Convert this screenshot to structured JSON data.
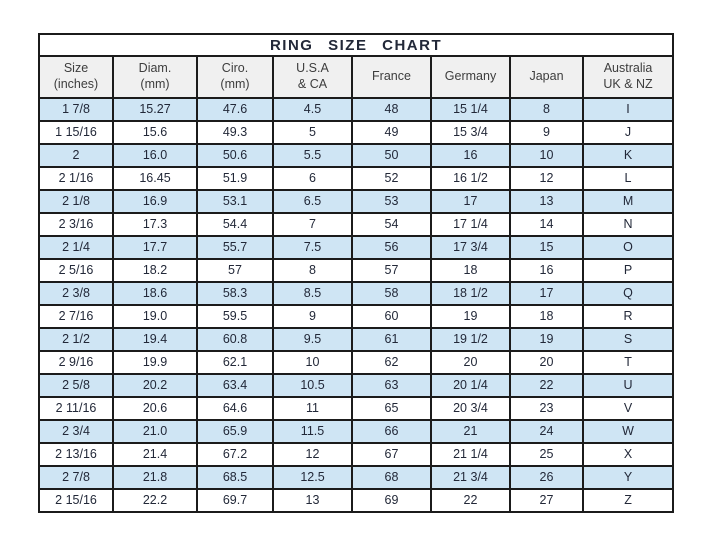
{
  "page_title": "RING SIZE CHART",
  "colors": {
    "row_alt_blue": "#cfe5f4",
    "row_base": "#ffffff",
    "header_bg": "#f0f0f0",
    "border": "#1b1b1b",
    "title_text": "#111111",
    "cell_text": "#222838"
  },
  "chart_data": {
    "type": "table",
    "title": "RING SIZE CHART",
    "layout_hints": {
      "title_row_spans_all_columns": true,
      "alternating_row_shading": "odd rows light blue, even rows white",
      "grid": "all cells bordered black"
    },
    "columns": [
      {
        "label": "Size",
        "sublabel": "(inches)"
      },
      {
        "label": "Diam.",
        "sublabel": "(mm)"
      },
      {
        "label": "Ciro.",
        "sublabel": "(mm)"
      },
      {
        "label": "U.S.A",
        "sublabel": "& CA"
      },
      {
        "label": "France",
        "sublabel": ""
      },
      {
        "label": "Germany",
        "sublabel": ""
      },
      {
        "label": "Japan",
        "sublabel": ""
      },
      {
        "label": "Australia",
        "sublabel": "UK & NZ"
      }
    ],
    "rows": [
      [
        "1 7/8",
        "15.27",
        "47.6",
        "4.5",
        "48",
        "15 1/4",
        "8",
        "I"
      ],
      [
        "1 15/16",
        "15.6",
        "49.3",
        "5",
        "49",
        "15 3/4",
        "9",
        "J"
      ],
      [
        "2",
        "16.0",
        "50.6",
        "5.5",
        "50",
        "16",
        "10",
        "K"
      ],
      [
        "2 1/16",
        "16.45",
        "51.9",
        "6",
        "52",
        "16 1/2",
        "12",
        "L"
      ],
      [
        "2 1/8",
        "16.9",
        "53.1",
        "6.5",
        "53",
        "17",
        "13",
        "M"
      ],
      [
        "2 3/16",
        "17.3",
        "54.4",
        "7",
        "54",
        "17 1/4",
        "14",
        "N"
      ],
      [
        "2 1/4",
        "17.7",
        "55.7",
        "7.5",
        "56",
        "17 3/4",
        "15",
        "O"
      ],
      [
        "2 5/16",
        "18.2",
        "57",
        "8",
        "57",
        "18",
        "16",
        "P"
      ],
      [
        "2 3/8",
        "18.6",
        "58.3",
        "8.5",
        "58",
        "18 1/2",
        "17",
        "Q"
      ],
      [
        "2 7/16",
        "19.0",
        "59.5",
        "9",
        "60",
        "19",
        "18",
        "R"
      ],
      [
        "2 1/2",
        "19.4",
        "60.8",
        "9.5",
        "61",
        "19 1/2",
        "19",
        "S"
      ],
      [
        "2 9/16",
        "19.9",
        "62.1",
        "10",
        "62",
        "20",
        "20",
        "T"
      ],
      [
        "2 5/8",
        "20.2",
        "63.4",
        "10.5",
        "63",
        "20 1/4",
        "22",
        "U"
      ],
      [
        "2 11/16",
        "20.6",
        "64.6",
        "11",
        "65",
        "20 3/4",
        "23",
        "V"
      ],
      [
        "2 3/4",
        "21.0",
        "65.9",
        "11.5",
        "66",
        "21",
        "24",
        "W"
      ],
      [
        "2 13/16",
        "21.4",
        "67.2",
        "12",
        "67",
        "21 1/4",
        "25",
        "X"
      ],
      [
        "2 7/8",
        "21.8",
        "68.5",
        "12.5",
        "68",
        "21 3/4",
        "26",
        "Y"
      ],
      [
        "2 15/16",
        "22.2",
        "69.7",
        "13",
        "69",
        "22",
        "27",
        "Z"
      ]
    ]
  }
}
